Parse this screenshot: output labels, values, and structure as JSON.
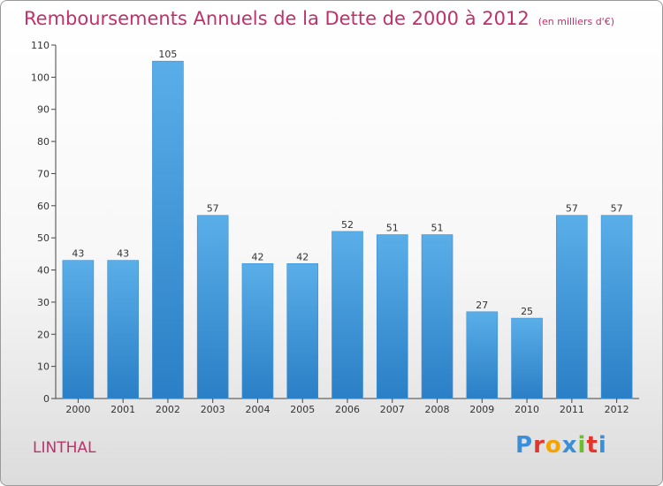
{
  "header": {
    "title": "Remboursements Annuels de la Dette de 2000 à 2012",
    "unit": "(en milliers d'€)"
  },
  "footer": {
    "commune": "LINTHAL",
    "brand": "Proxiti",
    "brand_colors": [
      "#3a8fd8",
      "#e2352b",
      "#f5a300",
      "#3a8fd8",
      "#6abf2a",
      "#e2352b",
      "#3a8fd8"
    ]
  },
  "colors": {
    "bar_light": "#5aaee8",
    "bar_dark": "#2a7fc6",
    "title": "#c0306a"
  },
  "chart_data": {
    "type": "bar",
    "title": "Remboursements Annuels de la Dette de 2000 à 2012",
    "xlabel": "",
    "ylabel": "",
    "categories": [
      "2000",
      "2001",
      "2002",
      "2003",
      "2004",
      "2005",
      "2006",
      "2007",
      "2008",
      "2009",
      "2010",
      "2011",
      "2012"
    ],
    "values": [
      43,
      43,
      105,
      57,
      42,
      42,
      52,
      51,
      51,
      27,
      25,
      57,
      57
    ],
    "data_labels": [
      "43",
      "43",
      "105",
      "57",
      "42",
      "42",
      "52",
      "51",
      "51",
      "27",
      "25",
      "57",
      "57"
    ],
    "ylim": [
      0,
      110
    ],
    "yticks": [
      0,
      10,
      20,
      30,
      40,
      50,
      60,
      70,
      80,
      90,
      100,
      110
    ],
    "grid": false,
    "legend": "none"
  }
}
